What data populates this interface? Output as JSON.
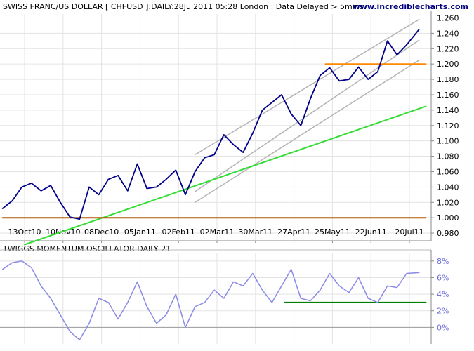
{
  "header": {
    "title": "SWISS FRANC/US DOLLAR [ CHFUSD ]:DAILY:28Jul2011 05:28 London : Data Delayed > 5mins",
    "site": "www.incrediblecharts.com"
  },
  "colors": {
    "price": "#00008b",
    "channel": "#b4b4b4",
    "trendline": "#33dd33",
    "support": "#b35900",
    "resistance": "#ff8800",
    "oscillator": "#8a8ae6",
    "osc_signal": "#008000",
    "grid": "#e3e3e3"
  },
  "chart_data": [
    {
      "type": "line",
      "title": "SWISS FRANC/US DOLLAR [ CHFUSD ]:DAILY:28Jul2011 05:28 London : Data Delayed > 5mins",
      "x_ticks": [
        "13Oct10",
        "10Nov10",
        "08Dec10",
        "05Jan11",
        "02Feb11",
        "02Mar11",
        "30Mar11",
        "27Apr11",
        "25May11",
        "22Jun11",
        "20Jul11"
      ],
      "y_ticks": [
        "0.980",
        "1.000",
        "1.020",
        "1.040",
        "1.060",
        "1.080",
        "1.100",
        "1.120",
        "1.140",
        "1.160",
        "1.180",
        "1.200",
        "1.220",
        "1.240",
        "1.260"
      ],
      "ylim": [
        0.97,
        1.265
      ],
      "grid": true,
      "series": [
        {
          "kind": "price",
          "dates": [
            "2010-09-27",
            "2010-10-04",
            "2010-10-11",
            "2010-10-18",
            "2010-10-25",
            "2010-11-01",
            "2010-11-08",
            "2010-11-15",
            "2010-11-22",
            "2010-11-29",
            "2010-12-06",
            "2010-12-13",
            "2010-12-20",
            "2010-12-27",
            "2011-01-03",
            "2011-01-10",
            "2011-01-17",
            "2011-01-24",
            "2011-01-31",
            "2011-02-07",
            "2011-02-14",
            "2011-02-21",
            "2011-02-28",
            "2011-03-07",
            "2011-03-14",
            "2011-03-21",
            "2011-03-28",
            "2011-04-04",
            "2011-04-11",
            "2011-04-18",
            "2011-04-25",
            "2011-05-02",
            "2011-05-09",
            "2011-05-16",
            "2011-05-23",
            "2011-05-30",
            "2011-06-06",
            "2011-06-13",
            "2011-06-20",
            "2011-06-27",
            "2011-07-04",
            "2011-07-11",
            "2011-07-18",
            "2011-07-27"
          ],
          "values": [
            1.012,
            1.022,
            1.04,
            1.045,
            1.035,
            1.042,
            1.02,
            1.001,
            0.998,
            1.04,
            1.03,
            1.05,
            1.055,
            1.035,
            1.07,
            1.038,
            1.04,
            1.05,
            1.062,
            1.03,
            1.06,
            1.078,
            1.082,
            1.108,
            1.095,
            1.085,
            1.11,
            1.14,
            1.15,
            1.16,
            1.135,
            1.12,
            1.155,
            1.185,
            1.195,
            1.178,
            1.18,
            1.196,
            1.18,
            1.19,
            1.23,
            1.212,
            1.225,
            1.245
          ]
        },
        {
          "kind": "upper-channel",
          "dates": [
            "2011-02-14",
            "2011-07-27"
          ],
          "values": [
            1.082,
            1.258
          ]
        },
        {
          "kind": "middle-channel",
          "dates": [
            "2011-02-14",
            "2011-07-27"
          ],
          "values": [
            1.034,
            1.231
          ]
        },
        {
          "kind": "lower-channel",
          "dates": [
            "2011-02-14",
            "2011-07-27"
          ],
          "values": [
            1.02,
            1.205
          ]
        },
        {
          "kind": "trendline",
          "dates": [
            "2010-10-13",
            "2011-08-01"
          ],
          "values": [
            0.965,
            1.145
          ]
        },
        {
          "kind": "support",
          "dates": [
            "2010-09-27",
            "2011-08-01"
          ],
          "values": [
            1.0,
            1.0
          ]
        },
        {
          "kind": "resistance",
          "dates": [
            "2011-05-20",
            "2011-08-01"
          ],
          "values": [
            1.2,
            1.2
          ]
        }
      ]
    },
    {
      "type": "line",
      "title": "TWIGGS MOMENTUM OSCILLATOR DAILY 21",
      "y_ticks": [
        "0%",
        "2%",
        "4%",
        "6%",
        "8%"
      ],
      "ylim": [
        -2.0,
        9.0
      ],
      "grid": true,
      "series": [
        {
          "kind": "oscillator",
          "dates": [
            "2010-09-27",
            "2010-10-04",
            "2010-10-11",
            "2010-10-18",
            "2010-10-25",
            "2010-11-01",
            "2010-11-08",
            "2010-11-15",
            "2010-11-22",
            "2010-11-29",
            "2010-12-06",
            "2010-12-13",
            "2010-12-20",
            "2010-12-27",
            "2011-01-03",
            "2011-01-10",
            "2011-01-17",
            "2011-01-24",
            "2011-01-31",
            "2011-02-07",
            "2011-02-14",
            "2011-02-21",
            "2011-02-28",
            "2011-03-07",
            "2011-03-14",
            "2011-03-21",
            "2011-03-28",
            "2011-04-04",
            "2011-04-11",
            "2011-04-18",
            "2011-04-25",
            "2011-05-02",
            "2011-05-09",
            "2011-05-16",
            "2011-05-23",
            "2011-05-30",
            "2011-06-06",
            "2011-06-13",
            "2011-06-20",
            "2011-06-27",
            "2011-07-04",
            "2011-07-11",
            "2011-07-18",
            "2011-07-27"
          ],
          "values": [
            7.0,
            7.8,
            8.0,
            7.2,
            5.0,
            3.5,
            1.5,
            -0.5,
            -1.5,
            0.5,
            3.5,
            3.0,
            1.0,
            3.0,
            5.5,
            2.5,
            0.5,
            1.5,
            4.0,
            0.0,
            2.5,
            3.0,
            4.5,
            3.5,
            5.5,
            5.0,
            6.5,
            4.5,
            3.0,
            5.0,
            7.0,
            3.5,
            3.2,
            4.5,
            6.5,
            5.0,
            4.2,
            6.0,
            3.5,
            3.0,
            5.0,
            4.8,
            6.5,
            6.6
          ]
        },
        {
          "kind": "signal",
          "dates": [
            "2011-04-20",
            "2011-08-01"
          ],
          "values": [
            3.0,
            3.0
          ]
        }
      ]
    }
  ]
}
